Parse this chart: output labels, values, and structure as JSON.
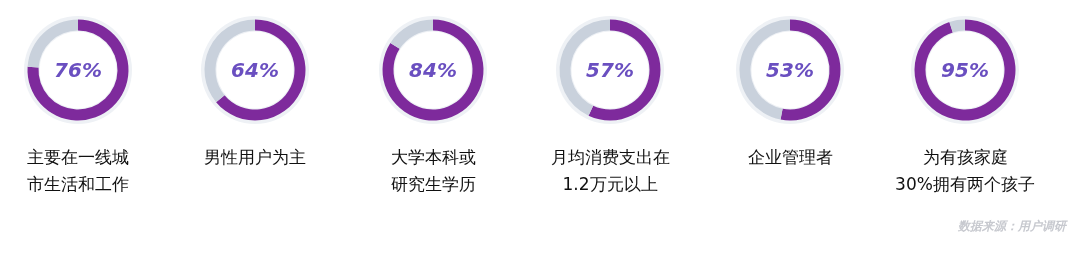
{
  "chart_data": [
    {
      "type": "donut",
      "title": "主要在一线城市生活和工作",
      "categories": [
        null,
        null
      ],
      "values": [
        76,
        24
      ],
      "colors": [
        "#7e2a9c",
        "#c9d1dc"
      ],
      "value_labels": [
        "76%",
        null
      ]
    },
    {
      "type": "donut",
      "title": "男性用户为主",
      "categories": [
        null,
        null
      ],
      "values": [
        64,
        36
      ],
      "colors": [
        "#7e2a9c",
        "#c9d1dc"
      ],
      "value_labels": [
        "64%",
        null
      ]
    },
    {
      "type": "donut",
      "title": "大学本科或研究生学历",
      "categories": [
        null,
        null
      ],
      "values": [
        84,
        16
      ],
      "colors": [
        "#7e2a9c",
        "#c9d1dc"
      ],
      "value_labels": [
        "84%",
        null
      ]
    },
    {
      "type": "donut",
      "title": "月均消费支出在\n1.2万元以上",
      "categories": [
        null,
        null
      ],
      "values": [
        57,
        43
      ],
      "colors": [
        "#7e2a9c",
        "#c9d1dc"
      ],
      "value_labels": [
        "57%",
        null
      ]
    },
    {
      "type": "donut",
      "title": "企业管理者",
      "categories": [
        null,
        null
      ],
      "values": [
        53,
        47
      ],
      "colors": [
        "#7e2a9c",
        "#c9d1dc"
      ],
      "value_labels": [
        "53%",
        null
      ]
    },
    {
      "type": "donut",
      "title": "为有孩家庭\n30%拥有两个孩子",
      "categories": [
        null,
        null
      ],
      "values": [
        95,
        5
      ],
      "colors": [
        "#7e2a9c",
        "#c9d1dc"
      ],
      "value_labels": [
        "95%",
        null
      ]
    },
    {
      "type": "other",
      "annotations": [
        "数据来源：用户调研"
      ]
    }
  ]
}
